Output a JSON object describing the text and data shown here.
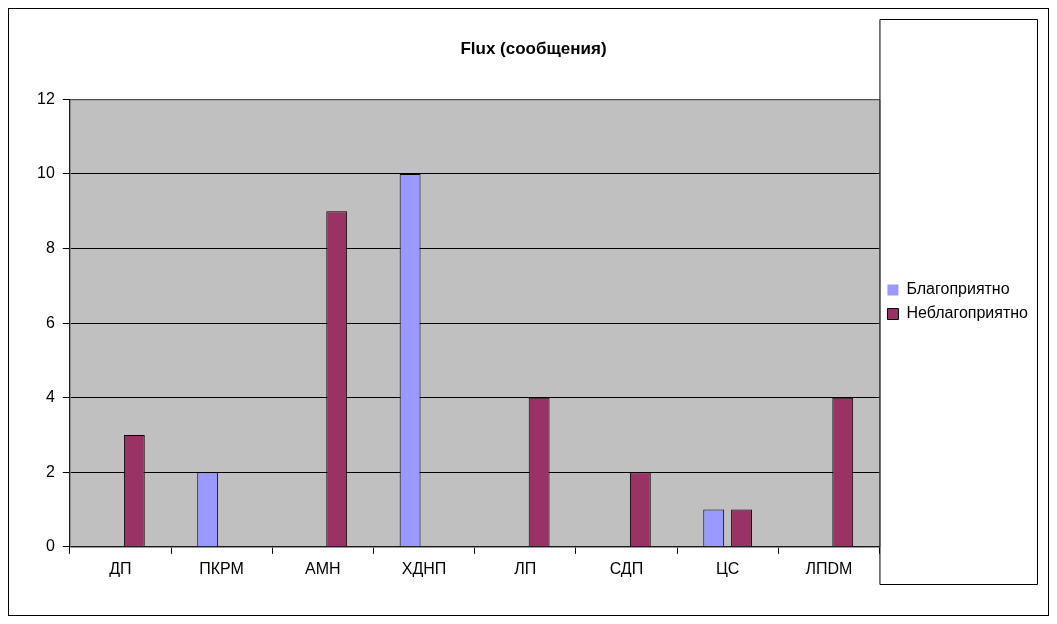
{
  "chart_data": {
    "type": "bar",
    "title": "Flux (сообщения)",
    "categories": [
      "ДП",
      "ПКРМ",
      "АМН",
      "ХДНП",
      "ЛП",
      "СДП",
      "ЦС",
      "ЛПDM"
    ],
    "series": [
      {
        "name": "Благоприятно",
        "color": "#9999ff",
        "values": [
          0,
          2,
          0,
          10,
          0,
          0,
          1,
          0
        ]
      },
      {
        "name": "Неблагоприятно",
        "color": "#993366",
        "values": [
          3,
          0,
          9,
          0,
          4,
          2,
          1,
          4
        ]
      }
    ],
    "ylim": [
      0,
      12
    ],
    "yticks": [
      0,
      2,
      4,
      6,
      8,
      10,
      12
    ],
    "grid": "y",
    "legend": "right"
  }
}
